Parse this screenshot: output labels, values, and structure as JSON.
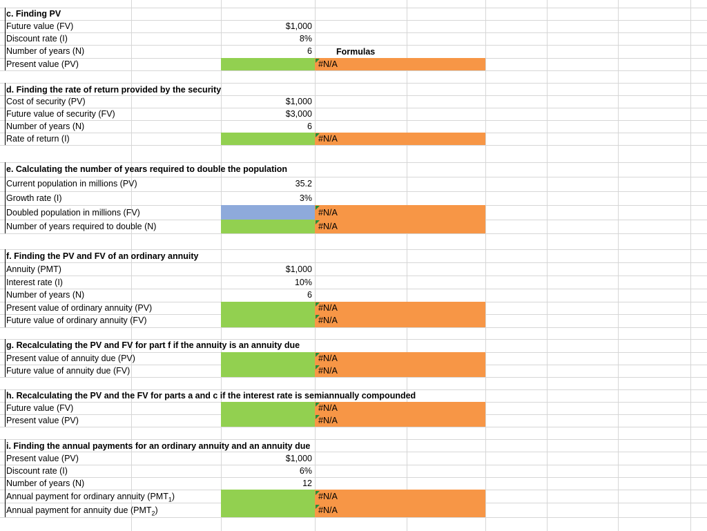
{
  "sections": {
    "c": {
      "title": "c. Finding PV",
      "rows": [
        {
          "label": "Future value (FV)",
          "value": "$1,000"
        },
        {
          "label": "Discount rate (I)",
          "value": "8%"
        },
        {
          "label": "Number of years (N)",
          "value": "6",
          "note": "Formulas"
        },
        {
          "label": "Present value (PV)",
          "formula": "#N/A"
        }
      ]
    },
    "d": {
      "title": "d. Finding the rate of return provided by the security",
      "rows": [
        {
          "label": "Cost of security (PV)",
          "value": "$1,000"
        },
        {
          "label": "Future value of security (FV)",
          "value": "$3,000"
        },
        {
          "label": "Number of years (N)",
          "value": "6"
        },
        {
          "label": "Rate of return (I)",
          "formula": "#N/A"
        }
      ]
    },
    "e": {
      "title": "e. Calculating the number of years required to double the population",
      "rows": [
        {
          "label": "Current population in millions (PV)",
          "value": "35.2"
        },
        {
          "label": "Growth rate (I)",
          "value": "3%"
        },
        {
          "label": "Doubled population in millions (FV)",
          "formula": "#N/A"
        },
        {
          "label": "Number of years required to double (N)",
          "formula": "#N/A"
        }
      ]
    },
    "f": {
      "title": "f. Finding the PV and FV of an ordinary annuity",
      "rows": [
        {
          "label": "Annuity (PMT)",
          "value": "$1,000"
        },
        {
          "label": "Interest rate (I)",
          "value": "10%"
        },
        {
          "label": "Number of years (N)",
          "value": "6"
        },
        {
          "label": "Present value of ordinary annuity (PV)",
          "formula": "#N/A"
        },
        {
          "label": "Future value of ordinary annuity (FV)",
          "formula": "#N/A"
        }
      ]
    },
    "g": {
      "title": "g. Recalculating the PV and FV for part f if the annuity is an annuity due",
      "rows": [
        {
          "label": "Present value of annuity due (PV)",
          "formula": "#N/A"
        },
        {
          "label": "Future value of annuity due (FV)",
          "formula": "#N/A"
        }
      ]
    },
    "h": {
      "title": "h. Recalculating the PV and the FV for parts a and c if the interest rate is semiannually compounded",
      "rows": [
        {
          "label": "Future value (FV)",
          "formula": "#N/A"
        },
        {
          "label": "Present value (PV)",
          "formula": "#N/A"
        }
      ]
    },
    "i": {
      "title": "i. Finding the annual payments for an ordinary annuity and an annuity due",
      "rows": [
        {
          "label": "Present value (PV)",
          "value": "$1,000"
        },
        {
          "label": "Discount rate (I)",
          "value": "6%"
        },
        {
          "label": "Number of years (N)",
          "value": "12"
        },
        {
          "label": "Annual payment for ordinary annuity (PMT",
          "sub": "1",
          "close": ")",
          "formula": "#N/A"
        },
        {
          "label": "Annual payment for annuity due (PMT",
          "sub": "2",
          "close": ")",
          "formula": "#N/A"
        }
      ]
    }
  },
  "colors": {
    "input_fill": "#92d050",
    "formula_fill": "#f79646",
    "blue_fill": "#8eaadb",
    "gridline": "#d6d6d6",
    "error_indicator": "#1f8f3a"
  }
}
